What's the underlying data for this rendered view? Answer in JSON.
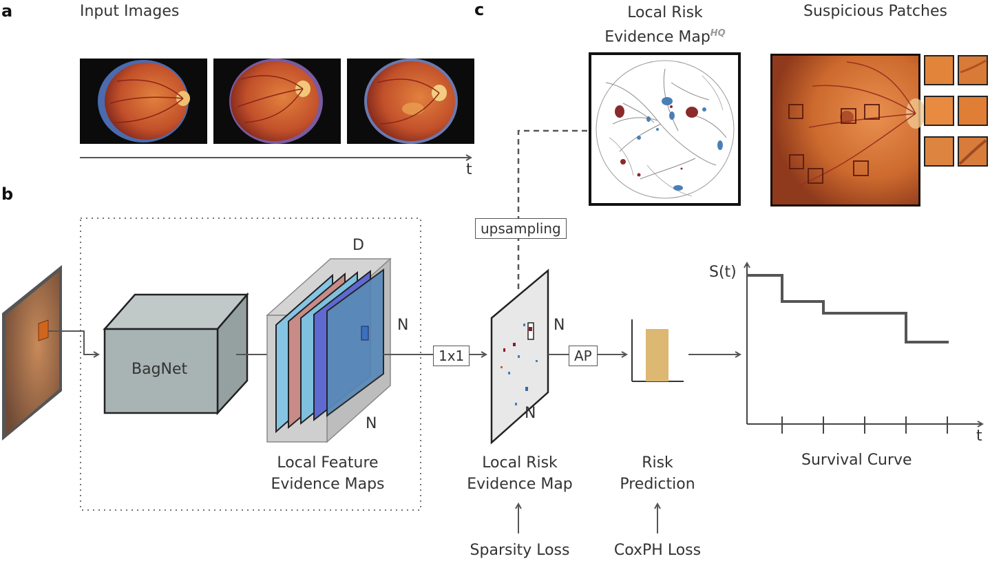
{
  "panels": {
    "a": "a",
    "b": "b",
    "c": "c"
  },
  "panel_a": {
    "title": "Input Images",
    "time_axis": "t"
  },
  "panel_b": {
    "backbone": "BagNet",
    "dim_d": "D",
    "dim_n_side": "N",
    "dim_n_bottom": "N",
    "feature_maps_label": [
      "Local Feature",
      "Evidence Maps"
    ],
    "conv_op": "1x1",
    "risk_map_n_side": "N",
    "risk_map_n_bottom": "N",
    "pool_op": "AP",
    "risk_map_label": [
      "Local Risk",
      "Evidence Map"
    ],
    "risk_pred_label": [
      "Risk",
      "Prediction"
    ],
    "sparsity_loss": "Sparsity Loss",
    "coxph_loss": "CoxPH Loss",
    "upsampling": "upsampling",
    "survival_ylabel": "S(t)",
    "survival_xlabel": "t",
    "survival_title": "Survival Curve"
  },
  "panel_c": {
    "map_title": [
      "Local Risk",
      "Evidence Map"
    ],
    "map_superscript": "HQ",
    "patches_title": "Suspicious Patches"
  },
  "colors": {
    "risk_bar": "#dcb872",
    "retina": "#c8612a",
    "risk_red": "#8b2a2a",
    "evidence_blue": "#4a7fb5",
    "box_gray": "#a8b3b3"
  }
}
